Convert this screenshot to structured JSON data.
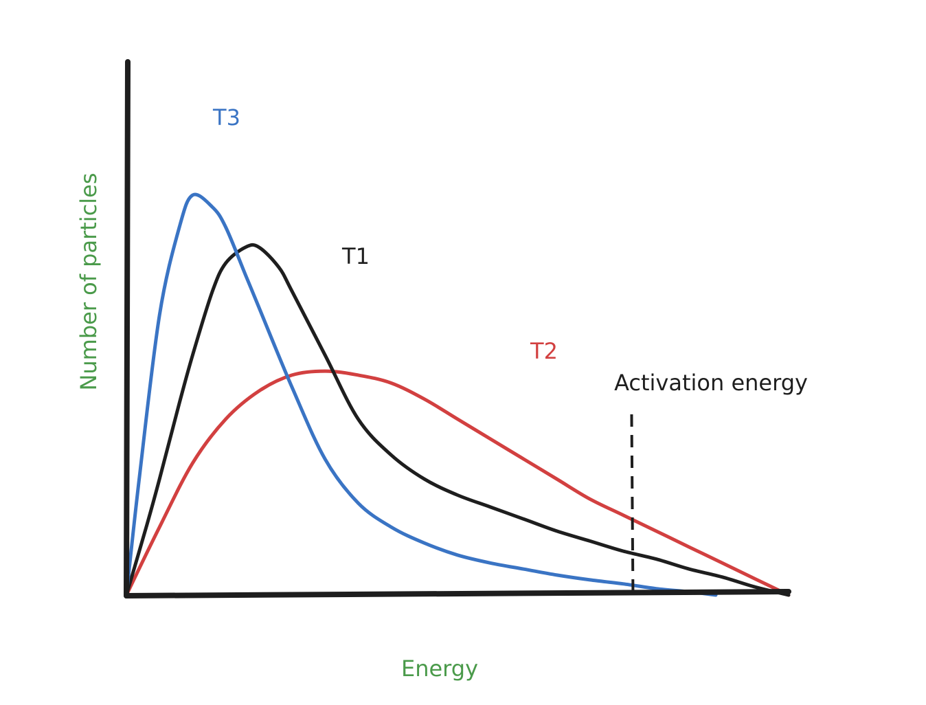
{
  "chart_data": {
    "type": "line",
    "title": "",
    "xlabel": "Energy",
    "ylabel": "Number of particles",
    "xlim": [
      0,
      100
    ],
    "ylim": [
      0,
      100
    ],
    "grid": false,
    "series": [
      {
        "name": "T3",
        "color": "#3a74c4",
        "x": [
          0,
          2,
          5,
          8,
          10,
          13,
          15,
          18,
          20,
          25,
          30,
          35,
          40,
          45,
          50,
          55,
          60,
          65,
          70,
          75,
          80,
          85,
          89
        ],
        "y": [
          0,
          30,
          70,
          92,
          100,
          97,
          92,
          80,
          72,
          52,
          34,
          23,
          17,
          13,
          10,
          8,
          6.5,
          5,
          3.8,
          2.8,
          1.6,
          0.8,
          0
        ]
      },
      {
        "name": "T1",
        "color": "#1e1e1e",
        "x": [
          0,
          3,
          5,
          8,
          10,
          13,
          15,
          18,
          20,
          23,
          25,
          30,
          35,
          40,
          45,
          50,
          55,
          60,
          65,
          70,
          75,
          80,
          85,
          90,
          95,
          100
        ],
        "y": [
          0,
          17,
          29,
          48,
          60,
          76,
          83,
          87,
          87,
          82,
          76,
          60,
          44,
          35,
          29,
          25,
          22,
          19,
          16,
          13.5,
          11,
          9,
          6.5,
          4.5,
          2,
          0
        ]
      },
      {
        "name": "T2",
        "color": "#d24040",
        "x": [
          0,
          5,
          10,
          15,
          20,
          25,
          30,
          35,
          40,
          45,
          50,
          55,
          60,
          65,
          70,
          75,
          80,
          85,
          90,
          95,
          100
        ],
        "y": [
          0,
          17,
          33,
          44,
          51,
          55,
          56,
          55,
          53,
          49,
          44,
          39,
          34,
          29,
          24,
          20,
          16,
          12,
          8,
          4,
          0
        ]
      }
    ],
    "annotations": [
      {
        "text": "Activation energy",
        "x": 76.5,
        "type": "vertical-dashed-line"
      }
    ]
  }
}
